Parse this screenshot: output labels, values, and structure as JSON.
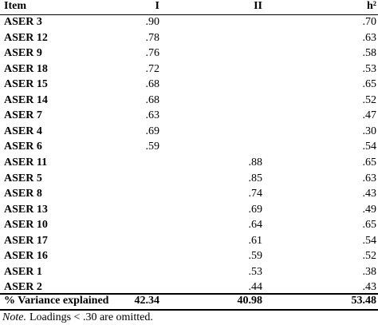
{
  "table": {
    "header": [
      "Item",
      "I",
      "II",
      "h²"
    ],
    "rows": [
      [
        "ASER 3",
        ".90",
        null,
        ".70"
      ],
      [
        "ASER 12",
        ".78",
        null,
        ".63"
      ],
      [
        "ASER 9",
        ".76",
        null,
        ".58"
      ],
      [
        "ASER 18",
        ".72",
        null,
        ".53"
      ],
      [
        "ASER 15",
        ".68",
        null,
        ".65"
      ],
      [
        "ASER 14",
        ".68",
        null,
        ".52"
      ],
      [
        "ASER 7",
        ".63",
        null,
        ".47"
      ],
      [
        "ASER 4",
        ".69",
        null,
        ".30"
      ],
      [
        "ASER 6",
        ".59",
        null,
        ".54"
      ],
      [
        "ASER 11",
        null,
        ".88",
        ".65"
      ],
      [
        "ASER 5",
        null,
        ".85",
        ".63"
      ],
      [
        "ASER 8",
        null,
        ".74",
        ".43"
      ],
      [
        "ASER 13",
        null,
        ".69",
        ".49"
      ],
      [
        "ASER 10",
        null,
        ".64",
        ".65"
      ],
      [
        "ASER 17",
        null,
        ".61",
        ".54"
      ],
      [
        "ASER 16",
        null,
        ".59",
        ".52"
      ],
      [
        "ASER 1",
        null,
        ".53",
        ".38"
      ],
      [
        "ASER 2",
        null,
        ".44",
        ".43"
      ]
    ],
    "footer_row": [
      "% Variance explained",
      "42.34",
      "40.98",
      "53.48"
    ],
    "note": {
      "label": "Note.",
      "text": "Loadings < .30 are omitted."
    }
  }
}
